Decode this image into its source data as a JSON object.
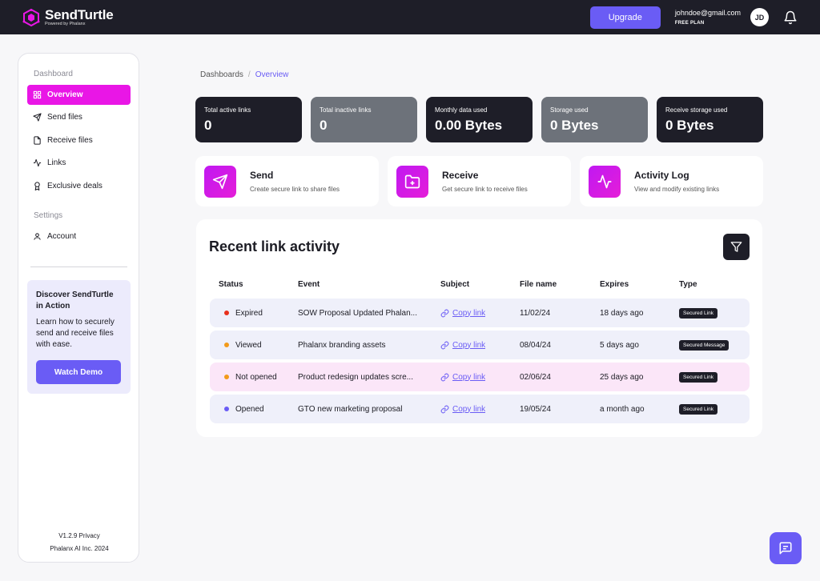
{
  "brand": {
    "name": "SendTurtle",
    "sub": "Powered by Phalanx"
  },
  "header": {
    "upgrade_label": "Upgrade",
    "email": "johndoe@gmail.com",
    "plan": "FREE PLAN",
    "avatar": "JD"
  },
  "sidebar": {
    "section_dashboard": "Dashboard",
    "items": [
      {
        "label": "Overview",
        "icon": "grid-icon"
      },
      {
        "label": "Send files",
        "icon": "send-icon"
      },
      {
        "label": "Receive files",
        "icon": "file-icon"
      },
      {
        "label": "Links",
        "icon": "activity-icon"
      },
      {
        "label": "Exclusive deals",
        "icon": "award-icon"
      }
    ],
    "section_settings": "Settings",
    "account_label": "Account",
    "promo": {
      "title": "Discover SendTurtle in Action",
      "text": "Learn how to securely send and receive files with ease.",
      "button": "Watch Demo"
    },
    "footer_line1": "V1.2.9 Privacy",
    "footer_line2": "Phalanx AI Inc. 2024"
  },
  "breadcrumb": {
    "root": "Dashboards",
    "separator": "/",
    "current": "Overview"
  },
  "stats": [
    {
      "label": "Total active links",
      "value": "0"
    },
    {
      "label": "Total inactive links",
      "value": "0"
    },
    {
      "label": "Monthly data used",
      "value": "0.00 Bytes"
    },
    {
      "label": "Storage used",
      "value": "0 Bytes"
    },
    {
      "label": "Receive storage used",
      "value": "0 Bytes"
    }
  ],
  "actions": [
    {
      "title": "Send",
      "desc": "Create secure link to share files"
    },
    {
      "title": "Receive",
      "desc": "Get secure link to receive files"
    },
    {
      "title": "Activity Log",
      "desc": "View and modify existing links"
    }
  ],
  "activity": {
    "title": "Recent link activity",
    "columns": [
      "Status",
      "Event",
      "Subject",
      "File name",
      "Expires",
      "Type"
    ],
    "rows": [
      {
        "status": "Expired",
        "event": "SOW Proposal Updated Phalan...",
        "subject": "Copy link",
        "file": "11/02/24",
        "expires": "18 days ago",
        "type": "Secured Link"
      },
      {
        "status": "Viewed",
        "event": "Phalanx branding assets",
        "subject": "Copy link",
        "file": "08/04/24",
        "expires": "5 days ago",
        "type": "Secured Message"
      },
      {
        "status": "Not opened",
        "event": "Product redesign updates scre...",
        "subject": "Copy link",
        "file": "02/06/24",
        "expires": "25 days ago",
        "type": "Secured Link"
      },
      {
        "status": "Opened",
        "event": "GTO new marketing proposal",
        "subject": "Copy link",
        "file": "19/05/24",
        "expires": "a month ago",
        "type": "Secured Link"
      }
    ]
  },
  "colors": {
    "accent": "#6a5cf5",
    "magenta": "#e916e6",
    "dark": "#1e1e28",
    "expired": "#e8301c",
    "viewed": "#f29a1a",
    "not_opened": "#f29a1a",
    "opened": "#6a5cf5"
  }
}
